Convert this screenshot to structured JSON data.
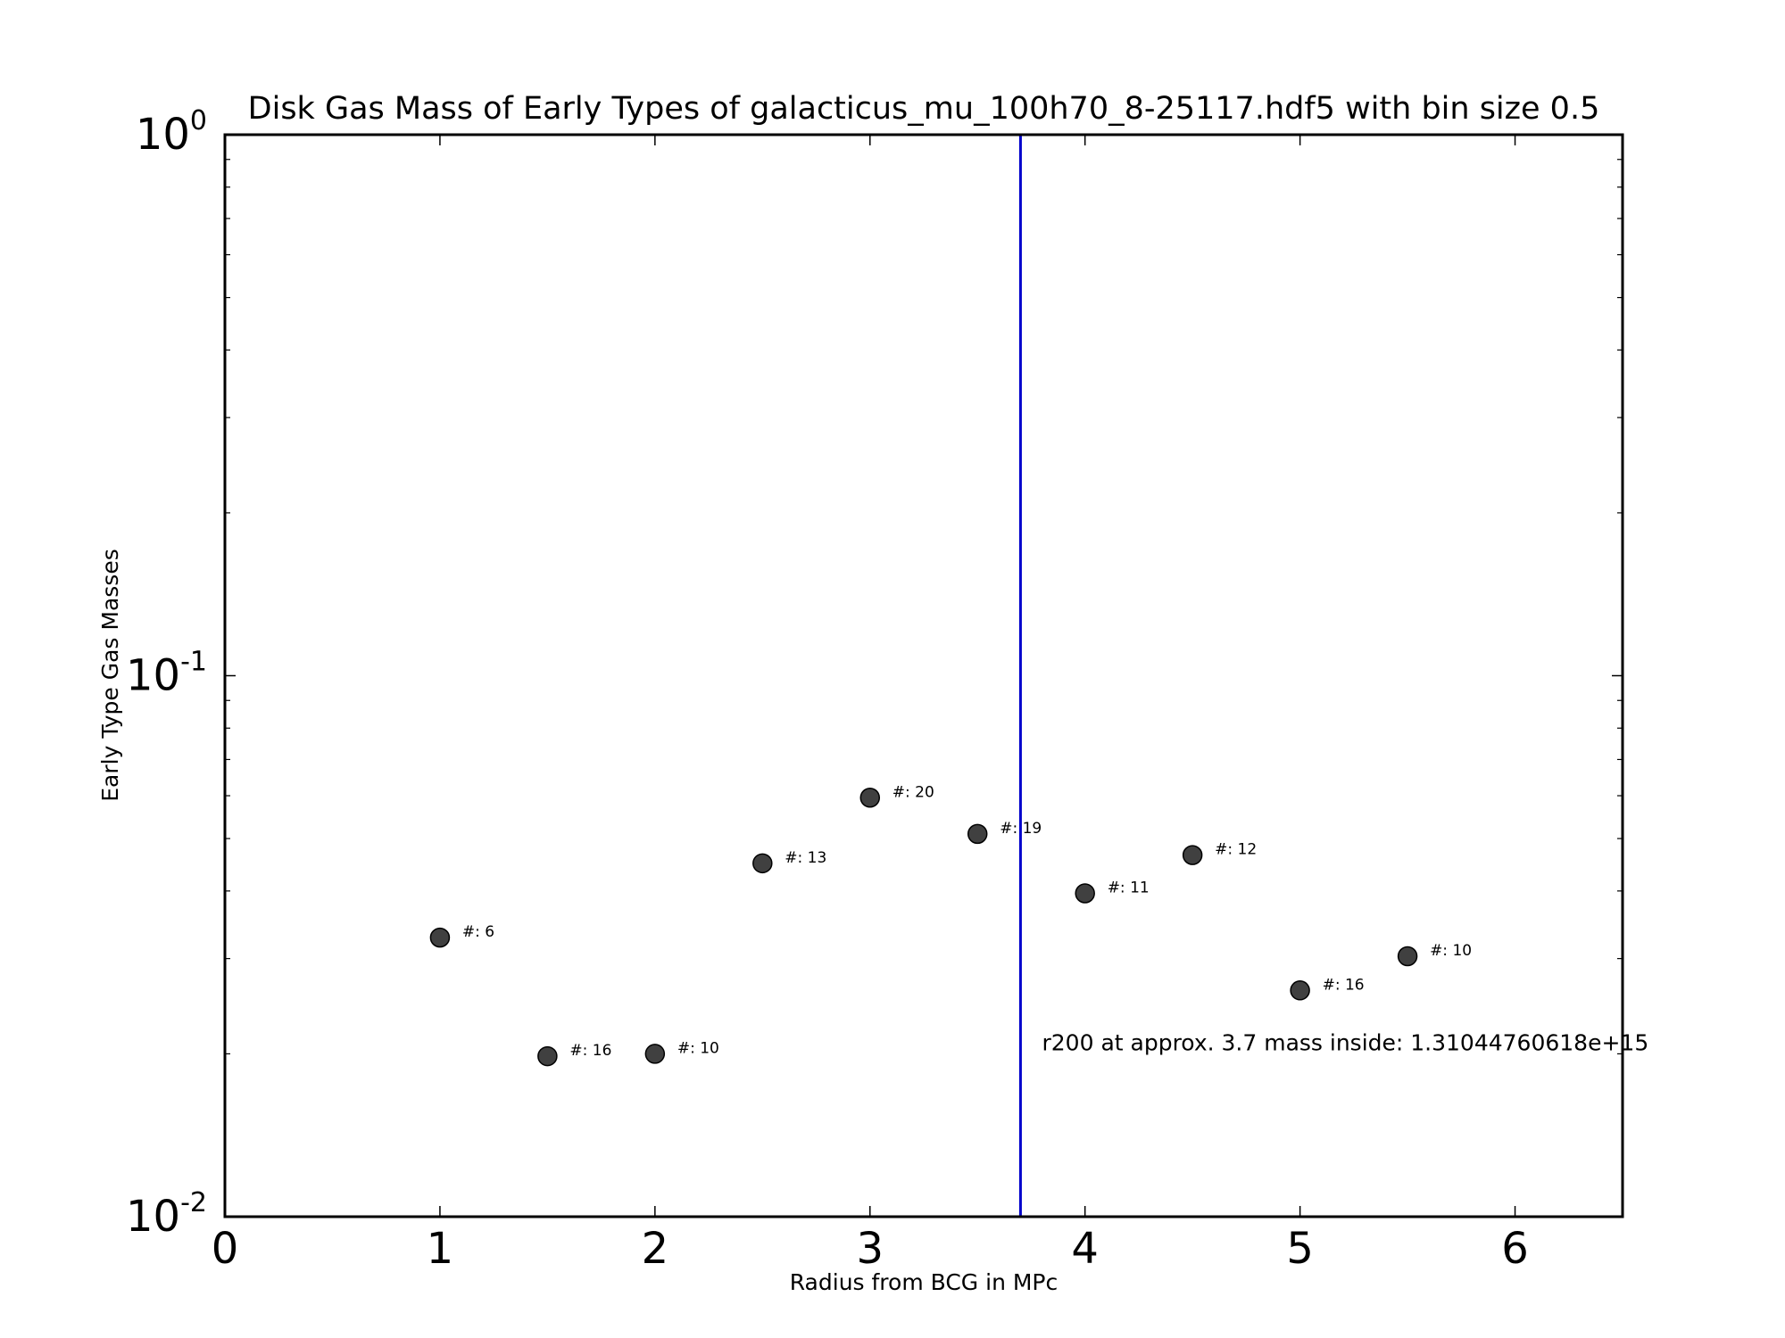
{
  "chart_data": {
    "type": "scatter",
    "title": "Disk Gas Mass of Early Types of galacticus_mu_100h70_8-25117.hdf5 with bin size 0.5",
    "xlabel": "Radius from BCG in MPc",
    "ylabel": "Early Type Gas Masses",
    "xlim": [
      0,
      6.5
    ],
    "ylim": [
      0.01,
      1
    ],
    "yscale": "log",
    "x_ticks": [
      {
        "value": 0,
        "label": "0"
      },
      {
        "value": 1,
        "label": "1"
      },
      {
        "value": 2,
        "label": "2"
      },
      {
        "value": 3,
        "label": "3"
      },
      {
        "value": 4,
        "label": "4"
      },
      {
        "value": 5,
        "label": "5"
      },
      {
        "value": 6,
        "label": "6"
      }
    ],
    "y_ticks": [
      {
        "value": 0.01,
        "base": "10",
        "exp": "-2"
      },
      {
        "value": 0.1,
        "base": "10",
        "exp": "-1"
      },
      {
        "value": 1,
        "base": "10",
        "exp": "0"
      }
    ],
    "grid": false,
    "points": [
      {
        "x": 1.0,
        "y": 0.0328,
        "label": "#: 6"
      },
      {
        "x": 1.5,
        "y": 0.0198,
        "label": "#: 16"
      },
      {
        "x": 2.0,
        "y": 0.02,
        "label": "#: 10"
      },
      {
        "x": 2.5,
        "y": 0.045,
        "label": "#: 13"
      },
      {
        "x": 3.0,
        "y": 0.0595,
        "label": "#: 20"
      },
      {
        "x": 3.5,
        "y": 0.051,
        "label": "#: 19"
      },
      {
        "x": 4.0,
        "y": 0.0396,
        "label": "#: 11"
      },
      {
        "x": 4.5,
        "y": 0.0466,
        "label": "#: 12"
      },
      {
        "x": 5.0,
        "y": 0.0262,
        "label": "#: 16"
      },
      {
        "x": 5.5,
        "y": 0.0303,
        "label": "#: 10"
      }
    ],
    "vline": {
      "x": 3.7,
      "color": "#0000cc"
    },
    "annotation": {
      "x": 3.8,
      "y": 0.02,
      "text": "r200 at approx. 3.7 mass inside: 1.31044760618e+15"
    },
    "colors": {
      "marker": "#404040",
      "marker_edge": "#000000",
      "axes": "#000000"
    }
  }
}
